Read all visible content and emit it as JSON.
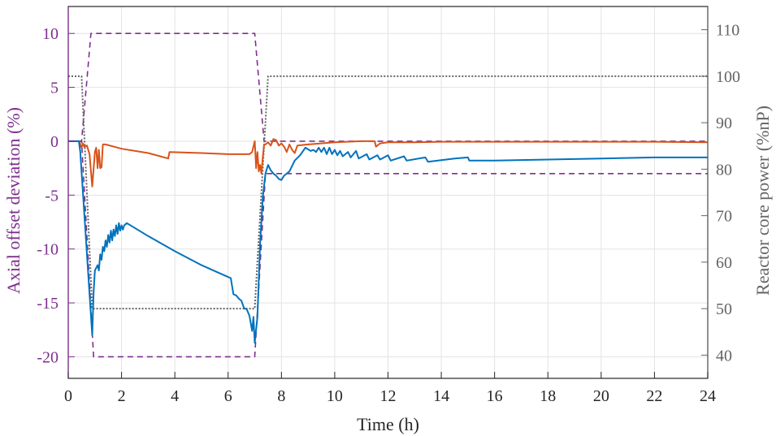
{
  "chart_data": {
    "type": "line",
    "title": "",
    "xlabel": "Time (h)",
    "ylabel_left": "Axial offset deviation (%)",
    "ylabel_right": "Reactor core power (%nP)",
    "xlim": [
      0,
      24
    ],
    "ylim_left": [
      -22,
      12.5
    ],
    "ylim_right": [
      35,
      115
    ],
    "xticks": [
      0,
      2,
      4,
      6,
      8,
      10,
      12,
      14,
      16,
      18,
      20,
      22,
      24
    ],
    "yticks_left": [
      -20,
      -15,
      -10,
      -5,
      0,
      5,
      10
    ],
    "yticks_right": [
      40,
      50,
      60,
      70,
      80,
      90,
      100,
      110
    ],
    "grid": true,
    "colors": {
      "left_axis": "#7e2f8e",
      "right_axis": "#636363",
      "grid": "#e3e3e3",
      "frame": "#262626"
    },
    "series": [
      {
        "axis": "left",
        "style": "dashed",
        "color": "#7e2f8e",
        "x": [
          0,
          0.5,
          0.85,
          7.0,
          7.35,
          24
        ],
        "y": [
          0,
          0,
          10,
          10,
          0,
          0
        ]
      },
      {
        "axis": "left",
        "style": "dashed",
        "color": "#7e2f8e",
        "x": [
          0,
          0.5,
          0.95,
          7.0,
          7.4,
          7.6,
          24
        ],
        "y": [
          0,
          0,
          -20,
          -20,
          -3,
          -3,
          -3
        ]
      },
      {
        "axis": "right",
        "style": "dotted",
        "color": "#636363",
        "x": [
          0,
          0.5,
          0.9,
          7.0,
          7.5,
          24
        ],
        "y": [
          100,
          100,
          50,
          50,
          100,
          100
        ]
      },
      {
        "axis": "left",
        "style": "solid",
        "color": "#d95319",
        "x": [
          0,
          0.4,
          0.5,
          0.55,
          0.6,
          0.7,
          0.8,
          0.9,
          1.0,
          1.05,
          1.1,
          1.15,
          1.2,
          1.25,
          1.3,
          1.4,
          2,
          3,
          3.75,
          3.8,
          5,
          6,
          6.8,
          6.9,
          7.0,
          7.05,
          7.1,
          7.15,
          7.2,
          7.25,
          7.3,
          7.35,
          7.4,
          7.5,
          7.6,
          7.7,
          7.8,
          7.9,
          8.0,
          8.1,
          8.2,
          8.3,
          8.4,
          8.5,
          8.6,
          9,
          10,
          11,
          11.5,
          11.55,
          11.7,
          12,
          13,
          14,
          16,
          18,
          20,
          22,
          24
        ],
        "y": [
          0,
          0,
          -0.6,
          -0.2,
          -0.5,
          -0.4,
          -1.2,
          -4.2,
          -1.0,
          -0.6,
          -2.5,
          -0.8,
          -2.5,
          -2.4,
          -0.3,
          -0.3,
          -0.7,
          -1.1,
          -1.6,
          -1.0,
          -1.1,
          -1.2,
          -1.2,
          -1.0,
          0,
          -2.5,
          -1.0,
          -2.8,
          -2.2,
          -3.0,
          -1.5,
          -0.3,
          -0.3,
          -0.1,
          -0.4,
          0.2,
          0.1,
          -0.4,
          -0.2,
          -0.5,
          -1.0,
          -0.3,
          -0.8,
          -1.1,
          -0.4,
          -0.3,
          -0.1,
          0,
          0,
          -0.5,
          -0.2,
          -0.1,
          -0.1,
          -0.05,
          -0.05,
          -0.05,
          -0.05,
          -0.05,
          -0.1
        ]
      },
      {
        "axis": "left",
        "style": "solid",
        "color": "#0072bd",
        "x": [
          0,
          0.4,
          0.45,
          0.9,
          0.95,
          1.0,
          1.1,
          1.15,
          1.2,
          1.25,
          1.3,
          1.35,
          1.4,
          1.45,
          1.5,
          1.55,
          1.6,
          1.65,
          1.7,
          1.75,
          1.8,
          1.85,
          1.9,
          1.95,
          2.0,
          2.05,
          2.1,
          2.2,
          3,
          4,
          5,
          6,
          6.1,
          6.2,
          6.3,
          6.4,
          6.5,
          6.6,
          6.7,
          6.8,
          6.9,
          6.95,
          7.0,
          7.1,
          7.2,
          7.3,
          7.4,
          7.5,
          7.6,
          7.7,
          7.8,
          7.9,
          8.0,
          8.1,
          8.3,
          8.5,
          8.7,
          8.9,
          9.1,
          9.2,
          9.3,
          9.4,
          9.5,
          9.6,
          9.7,
          9.8,
          9.9,
          10.0,
          10.1,
          10.2,
          10.3,
          10.5,
          10.6,
          10.8,
          10.9,
          11.2,
          11.3,
          11.6,
          11.7,
          12.0,
          12.1,
          12.6,
          12.7,
          13.4,
          13.5,
          14.5,
          15.0,
          15.05,
          16,
          18,
          20,
          22,
          24
        ],
        "y": [
          0,
          0,
          -1,
          -18,
          -14,
          -12,
          -11.5,
          -12,
          -10.5,
          -11,
          -9.8,
          -10.2,
          -9.2,
          -9.8,
          -8.7,
          -9.4,
          -8.3,
          -9.2,
          -8.2,
          -8.8,
          -7.8,
          -8.6,
          -7.6,
          -8.3,
          -7.8,
          -8.2,
          -7.8,
          -7.6,
          -8.8,
          -10.2,
          -11.5,
          -12.6,
          -12.7,
          -14.2,
          -14.3,
          -14.6,
          -14.8,
          -15.5,
          -15.6,
          -16.2,
          -17.6,
          -16.3,
          -18.7,
          -16.3,
          -9.5,
          -5.2,
          -3.0,
          -2.2,
          -2.7,
          -3.0,
          -3.2,
          -3.5,
          -3.6,
          -3.2,
          -2.8,
          -1.8,
          -1.3,
          -0.6,
          -0.9,
          -0.8,
          -1.0,
          -0.6,
          -1.0,
          -0.6,
          -1.2,
          -0.6,
          -1.2,
          -0.8,
          -1.3,
          -0.9,
          -1.4,
          -1.0,
          -1.5,
          -0.9,
          -1.6,
          -1.2,
          -1.7,
          -1.3,
          -1.7,
          -1.3,
          -1.8,
          -1.4,
          -1.8,
          -1.5,
          -1.9,
          -1.6,
          -1.5,
          -1.8,
          -1.8,
          -1.7,
          -1.6,
          -1.5,
          -1.5
        ]
      }
    ]
  }
}
